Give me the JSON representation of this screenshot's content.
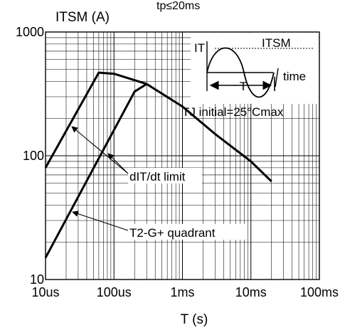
{
  "chart_data": {
    "type": "line",
    "title": "tp≤20ms",
    "ylabel": "ITSM (A)",
    "xlabel": "T (s)",
    "x_scale": "log",
    "y_scale": "log",
    "xlim_s": [
      1e-05,
      0.1
    ],
    "ylim": [
      10,
      1000
    ],
    "grid": true,
    "x_ticks": [
      {
        "value": 1e-05,
        "label": "10us"
      },
      {
        "value": 0.0001,
        "label": "100us"
      },
      {
        "value": 0.001,
        "label": "1ms"
      },
      {
        "value": 0.01,
        "label": "10ms"
      },
      {
        "value": 0.1,
        "label": "100ms"
      }
    ],
    "y_ticks": [
      {
        "value": 10,
        "label": "10"
      },
      {
        "value": 100,
        "label": "100"
      },
      {
        "value": 1000,
        "label": "1000"
      }
    ],
    "series": [
      {
        "points": [
          [
            1e-05,
            80
          ],
          [
            6e-05,
            470
          ],
          [
            0.0001,
            460
          ],
          [
            0.0003,
            380
          ],
          [
            0.001,
            250
          ],
          [
            0.003,
            150
          ],
          [
            0.01,
            90
          ],
          [
            0.02,
            62
          ]
        ]
      },
      {
        "points": [
          [
            1e-05,
            15
          ],
          [
            0.0002,
            330
          ],
          [
            0.0003,
            380
          ]
        ]
      }
    ],
    "annotations": [
      {
        "text": "dIT/dt limit",
        "arrows_to": [
          [
            2.2e-05,
            170
          ],
          [
            0.00015,
            140
          ]
        ]
      },
      {
        "text": "T2-G+ quadrant",
        "arrows_to": [
          [
            2.3e-05,
            37
          ]
        ]
      }
    ],
    "inset": {
      "it_label": "IT",
      "itsm_label": "ITSM",
      "period_label": "T",
      "time_label": "time",
      "condition": "TJ initial=25°Cmax"
    }
  }
}
